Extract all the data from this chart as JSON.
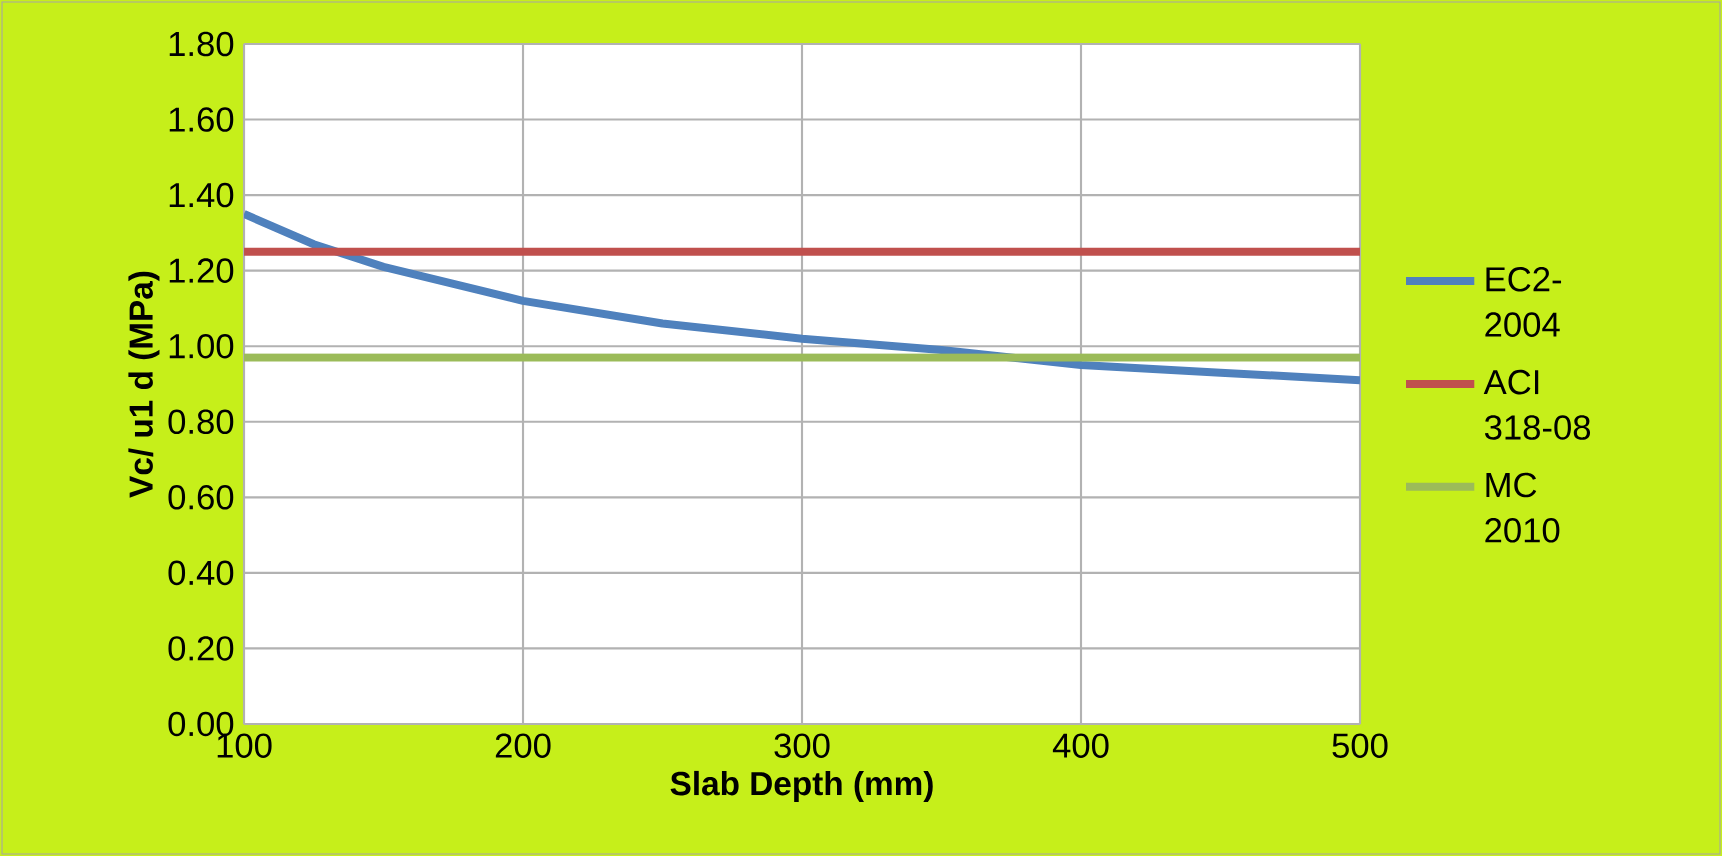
{
  "chart_data": {
    "type": "line",
    "xlabel": "Slab Depth (mm)",
    "ylabel": "Vc/ u1 d (MPa)",
    "series": [
      {
        "name": "EC2-2004",
        "color": "#4f81bd",
        "x": [
          100,
          125,
          150,
          200,
          250,
          300,
          350,
          400,
          450,
          500
        ],
        "values": [
          1.35,
          1.27,
          1.21,
          1.12,
          1.06,
          1.02,
          0.99,
          0.95,
          0.93,
          0.91
        ]
      },
      {
        "name": "ACI 318-08",
        "color": "#c0504d",
        "x": [
          100,
          500
        ],
        "values": [
          1.25,
          1.25
        ]
      },
      {
        "name": "MC 2010",
        "color": "#9bbb59",
        "x": [
          100,
          500
        ],
        "values": [
          0.97,
          0.97
        ]
      }
    ],
    "xlim": [
      100,
      500
    ],
    "xticks": [
      100,
      200,
      300,
      400,
      500
    ],
    "ylim": [
      0,
      1.8
    ],
    "yticks": [
      {
        "value": 0,
        "label": "0.00"
      },
      {
        "value": 0.2,
        "label": "0.20"
      },
      {
        "value": 0.4,
        "label": "0.40"
      },
      {
        "value": 0.6,
        "label": "0.60"
      },
      {
        "value": 0.8,
        "label": "0.80"
      },
      {
        "value": 1.0,
        "label": "1.00"
      },
      {
        "value": 1.2,
        "label": "1.20"
      },
      {
        "value": 1.4,
        "label": "1.40"
      },
      {
        "value": 1.6,
        "label": "1.60"
      },
      {
        "value": 1.8,
        "label": "1.80"
      }
    ],
    "grid": true,
    "legend": "right",
    "marker": "none",
    "line_style": "solid"
  }
}
